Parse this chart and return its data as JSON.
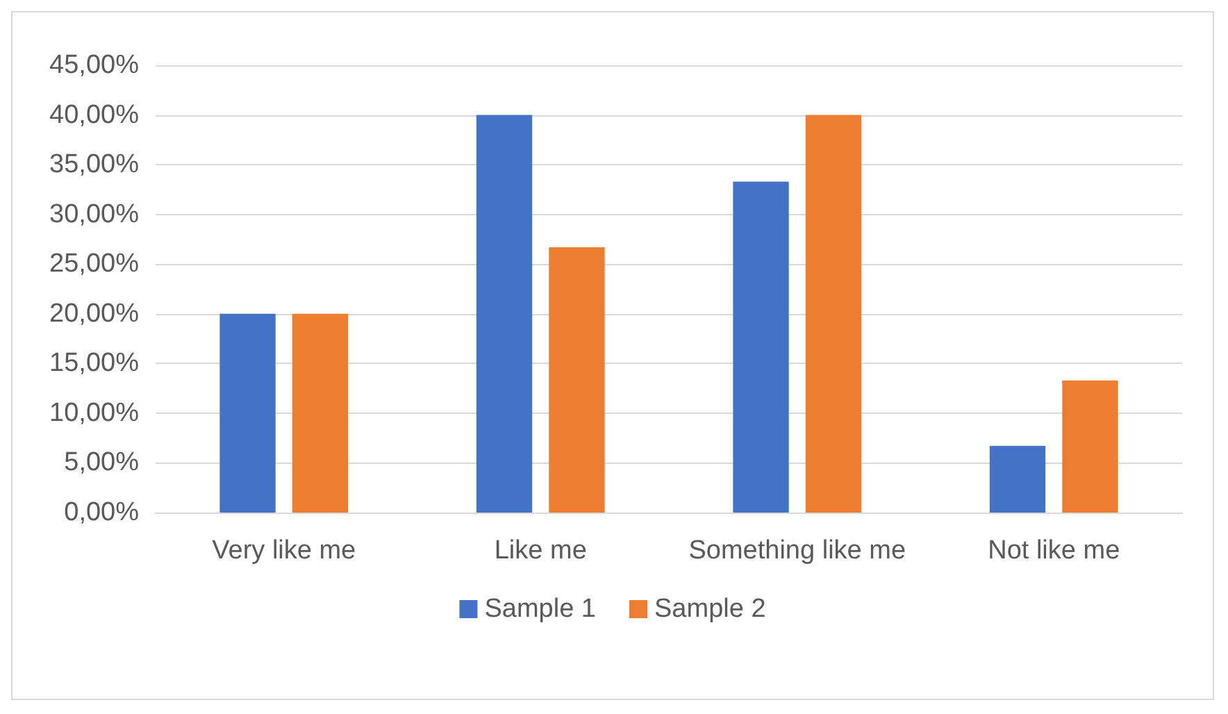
{
  "chart_data": {
    "type": "bar",
    "categories": [
      "Very like me",
      "Like me",
      "Something like me",
      "Not like me"
    ],
    "series": [
      {
        "name": "Sample 1",
        "color": "#4472c4",
        "values": [
          20,
          40,
          33.3,
          6.7
        ]
      },
      {
        "name": "Sample 2",
        "color": "#ed7d31",
        "values": [
          20,
          26.7,
          40,
          13.3
        ]
      }
    ],
    "ylim": [
      0,
      45
    ],
    "yticks": [
      {
        "value": 0,
        "label": "0,00%"
      },
      {
        "value": 5,
        "label": "5,00%"
      },
      {
        "value": 10,
        "label": "10,00%"
      },
      {
        "value": 15,
        "label": "15,00%"
      },
      {
        "value": 20,
        "label": "20,00%"
      },
      {
        "value": 25,
        "label": "25,00%"
      },
      {
        "value": 30,
        "label": "30,00%"
      },
      {
        "value": 35,
        "label": "35,00%"
      },
      {
        "value": 40,
        "label": "40,00%"
      },
      {
        "value": 45,
        "label": "45,00%"
      }
    ],
    "grid": "y",
    "legend": "bottom"
  }
}
